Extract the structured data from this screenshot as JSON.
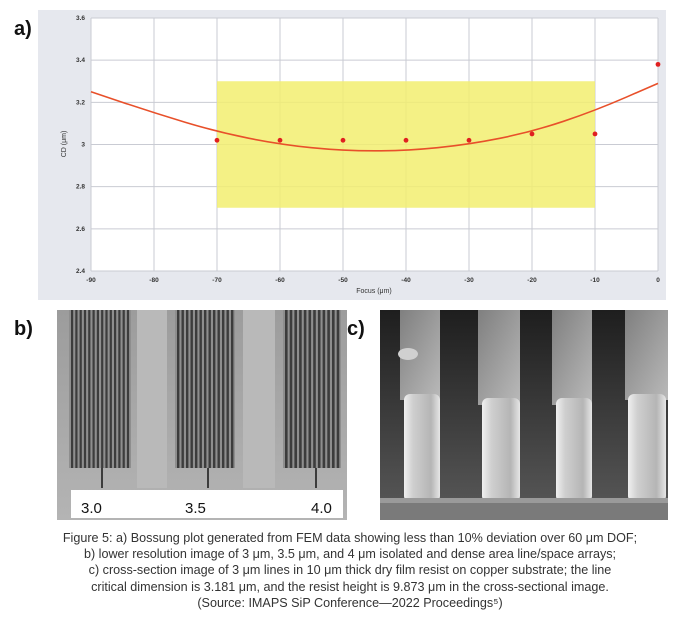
{
  "panels": {
    "a_label": "a)",
    "b_label": "b)",
    "c_label": "c)"
  },
  "chart_data": {
    "type": "scatter",
    "title": "",
    "xlabel": "Focus (μm)",
    "ylabel": "CD (μm)",
    "xlim": [
      -90,
      0
    ],
    "ylim": [
      2.4,
      3.6
    ],
    "xticks": [
      "-90",
      "-80",
      "-70",
      "-60",
      "-50",
      "-40",
      "-30",
      "-20",
      "-10",
      "0"
    ],
    "yticks": [
      "2.4",
      "2.6",
      "2.8",
      "3",
      "3.2",
      "3.4",
      "3.6"
    ],
    "grid": true,
    "points": [
      {
        "x": -70,
        "y": 3.02
      },
      {
        "x": -60,
        "y": 3.02
      },
      {
        "x": -50,
        "y": 3.02
      },
      {
        "x": -40,
        "y": 3.02
      },
      {
        "x": -30,
        "y": 3.02
      },
      {
        "x": -20,
        "y": 3.05
      },
      {
        "x": -10,
        "y": 3.05
      },
      {
        "x": 0,
        "y": 3.38
      }
    ],
    "fit_curve": [
      {
        "x": -90,
        "y": 3.25
      },
      {
        "x": -80,
        "y": 3.15
      },
      {
        "x": -70,
        "y": 3.06
      },
      {
        "x": -60,
        "y": 3.0
      },
      {
        "x": -50,
        "y": 2.97
      },
      {
        "x": -40,
        "y": 2.97
      },
      {
        "x": -30,
        "y": 3.0
      },
      {
        "x": -20,
        "y": 3.06
      },
      {
        "x": -10,
        "y": 3.16
      },
      {
        "x": 0,
        "y": 3.29
      }
    ],
    "window": {
      "x": [
        -70,
        -10
      ],
      "y": [
        2.7,
        3.3
      ]
    },
    "colors": {
      "point": "#e02020",
      "curve": "#e8502a",
      "window": "#f2ee70",
      "background": "#ffffff",
      "grid": "#c9cbd3"
    }
  },
  "micrographs": {
    "b_scale_labels": [
      "3.0",
      "3.5",
      "4.0"
    ]
  },
  "caption": {
    "line1": "Figure 5: a) Bossung plot generated from FEM data showing less than 10% deviation over 60 μm DOF;",
    "line2": "b) lower resolution image of 3 μm, 3.5 μm, and 4 μm isolated and dense area line/space arrays;",
    "line3": "c) cross-section image of 3 μm lines in 10 μm thick dry film resist on copper substrate; the line",
    "line4": "critical dimension is 3.181 μm, and the resist height is 9.873 μm in the cross-sectional image.",
    "line5": "(Source: IMAPS SiP Conference—2022 Proceedings⁵)"
  }
}
